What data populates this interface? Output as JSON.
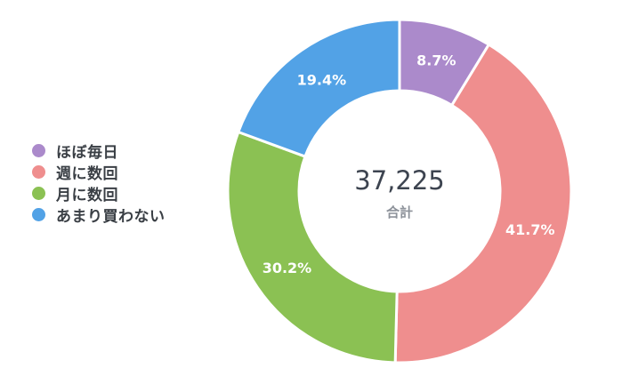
{
  "chart_data": {
    "type": "pie",
    "categories": [
      "ほぼ毎日",
      "週に数回",
      "月に数回",
      "あまり買わない"
    ],
    "values": [
      8.7,
      41.7,
      30.2,
      19.4
    ],
    "value_labels": [
      "8.7%",
      "41.7%",
      "30.2%",
      "19.4%"
    ],
    "colors": [
      "#ab8acb",
      "#ef8e8e",
      "#8bc153",
      "#52a2e6"
    ],
    "total": "37,225",
    "total_label": "合計",
    "legend_position": "left",
    "donut": true
  }
}
